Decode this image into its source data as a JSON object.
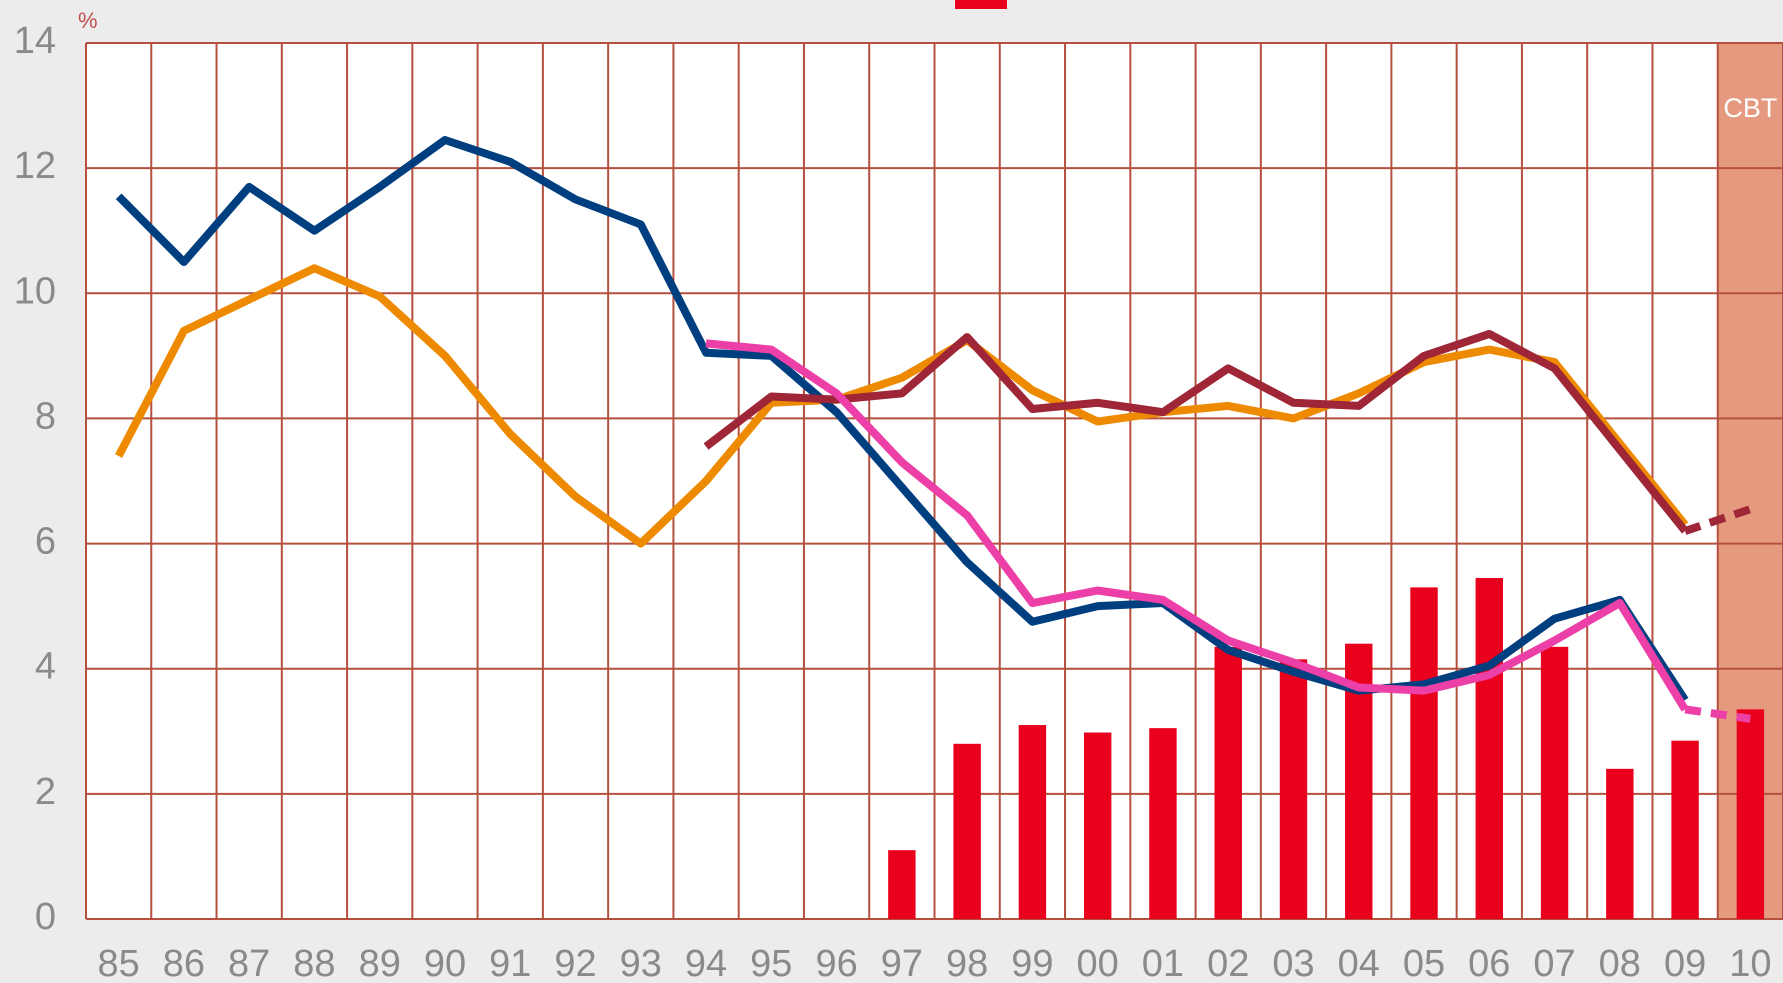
{
  "chart_data": {
    "type": "line",
    "y_label": "%",
    "annotation": "CBT",
    "shade_color": "#e59a80",
    "categories": [
      "85",
      "86",
      "87",
      "88",
      "89",
      "90",
      "91",
      "92",
      "93",
      "94",
      "95",
      "96",
      "97",
      "98",
      "99",
      "00",
      "01",
      "02",
      "03",
      "04",
      "05",
      "06",
      "07",
      "08",
      "09",
      "10"
    ],
    "ylim": [
      0,
      14
    ],
    "yticks": [
      0,
      2,
      4,
      6,
      8,
      10,
      12,
      14
    ],
    "grid": true,
    "bars": {
      "color": "#e8001c",
      "values": [
        null,
        null,
        null,
        null,
        null,
        null,
        null,
        null,
        null,
        null,
        null,
        null,
        1.1,
        2.8,
        3.1,
        2.98,
        3.05,
        4.35,
        4.15,
        4.4,
        5.3,
        5.45,
        4.35,
        2.4,
        2.85,
        3.35
      ]
    },
    "series": [
      {
        "color": "#ee8a00",
        "dashed": false,
        "values": [
          7.4,
          9.4,
          9.9,
          10.4,
          9.95,
          9.0,
          7.75,
          6.75,
          6.0,
          7.0,
          8.25,
          8.3,
          8.65,
          9.25,
          8.45,
          7.95,
          8.1,
          8.2,
          8.0,
          8.4,
          8.9,
          9.1,
          8.9,
          7.6,
          6.3,
          null
        ]
      },
      {
        "color": "#003f7f",
        "dashed": false,
        "values": [
          11.55,
          10.5,
          11.7,
          11.0,
          11.7,
          12.45,
          12.1,
          11.5,
          11.1,
          9.05,
          9.0,
          8.1,
          6.9,
          5.7,
          4.75,
          5.0,
          5.05,
          4.3,
          3.95,
          3.65,
          3.75,
          4.05,
          4.8,
          5.1,
          3.5,
          null
        ]
      },
      {
        "color": "#9e2637",
        "dashed": false,
        "values": [
          null,
          null,
          null,
          null,
          null,
          null,
          null,
          null,
          null,
          7.55,
          8.35,
          8.3,
          8.4,
          9.3,
          8.15,
          8.25,
          8.1,
          8.8,
          8.25,
          8.2,
          9.0,
          9.35,
          8.8,
          7.5,
          6.2,
          null
        ]
      },
      {
        "color": "#9e2637",
        "dashed": true,
        "values": [
          null,
          null,
          null,
          null,
          null,
          null,
          null,
          null,
          null,
          null,
          null,
          null,
          null,
          null,
          null,
          null,
          null,
          null,
          null,
          null,
          null,
          null,
          null,
          null,
          6.2,
          6.55
        ]
      },
      {
        "color": "#ec3fa8",
        "dashed": false,
        "values": [
          null,
          null,
          null,
          null,
          null,
          null,
          null,
          null,
          null,
          9.2,
          9.1,
          8.4,
          7.3,
          6.45,
          5.05,
          5.25,
          5.1,
          4.45,
          4.1,
          3.7,
          3.65,
          3.9,
          4.45,
          5.05,
          3.35,
          null
        ]
      },
      {
        "color": "#ec3fa8",
        "dashed": true,
        "values": [
          null,
          null,
          null,
          null,
          null,
          null,
          null,
          null,
          null,
          null,
          null,
          null,
          null,
          null,
          null,
          null,
          null,
          null,
          null,
          null,
          null,
          null,
          null,
          null,
          3.35,
          3.2
        ]
      }
    ]
  }
}
